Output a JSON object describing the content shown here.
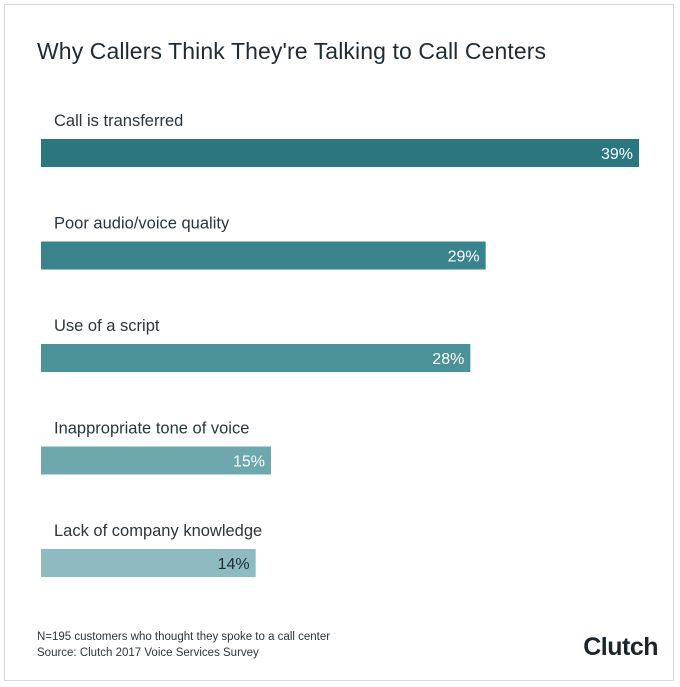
{
  "chart_data": {
    "type": "bar",
    "orientation": "horizontal",
    "title": "Why Callers Think They're Talking to Call Centers",
    "categories": [
      "Call is transferred",
      "Poor audio/voice quality",
      "Use of a script",
      "Inappropriate tone of voice",
      "Lack of company knowledge"
    ],
    "values": [
      39,
      29,
      28,
      15,
      14
    ],
    "value_labels": [
      "39%",
      "29%",
      "28%",
      "15%",
      "14%"
    ],
    "unit": "%",
    "xlim": [
      0,
      39
    ],
    "grid": false,
    "legend": "none",
    "colors": [
      "#2b7780",
      "#39838c",
      "#4b9198",
      "#6ea7ae",
      "#8ebbc1"
    ],
    "label_colors": [
      "#ffffff",
      "#ffffff",
      "#ffffff",
      "#ffffff",
      "#1f2b33"
    ]
  },
  "footer": {
    "note": "N=195 customers who thought they spoke to a call center",
    "source": "Source: Clutch 2017 Voice Services Survey",
    "brand": "Clutch"
  }
}
